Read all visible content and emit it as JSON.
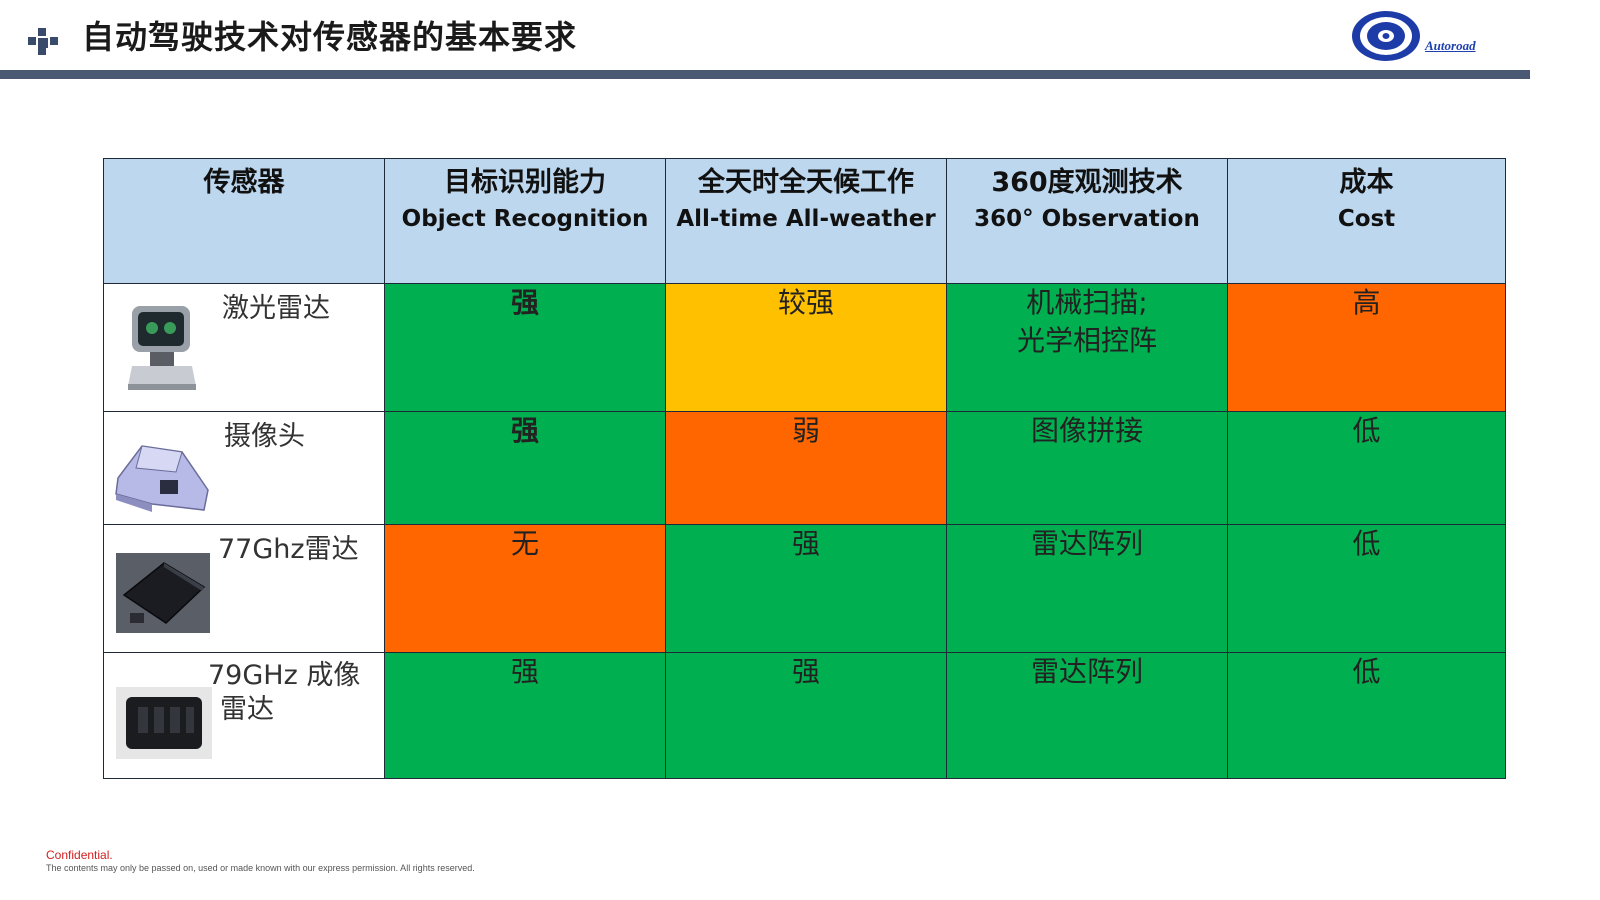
{
  "header": {
    "title": "自动驾驶技术对传感器的基本要求",
    "logo_text": "Autoroad"
  },
  "table": {
    "columns": [
      {
        "cn": "传感器",
        "en": ""
      },
      {
        "cn": "目标识别能力",
        "en": "Object Recognition"
      },
      {
        "cn": "全天时全天候工作",
        "en": "All-time All-weather"
      },
      {
        "cn": "360度观测技术",
        "en": "360° Observation"
      },
      {
        "cn": "成本",
        "en": "Cost"
      }
    ],
    "rows": [
      {
        "sensor": "激光雷达",
        "object": "强",
        "allweather": "较强",
        "obs_line1": "机械扫描;",
        "obs_line2": "光学相控阵",
        "cost": "高"
      },
      {
        "sensor": "摄像头",
        "object": "强",
        "allweather": "弱",
        "obs_line1": "图像拼接",
        "obs_line2": "",
        "cost": "低"
      },
      {
        "sensor": "77Ghz雷达",
        "object": "无",
        "allweather": "强",
        "obs_line1": "雷达阵列",
        "obs_line2": "",
        "cost": "低"
      },
      {
        "sensor_line1": "79GHz 成像",
        "sensor_line2": "雷达",
        "object": "强",
        "allweather": "强",
        "obs_line1": "雷达阵列",
        "obs_line2": "",
        "cost": "低"
      }
    ]
  },
  "colors": {
    "green": "#00b050",
    "orange": "#ff6600",
    "yellow": "#ffc000",
    "header_blue": "#bdd7ee"
  },
  "footer": {
    "confidential": "Confidential.",
    "disclaimer": "The contents may only be passed on, used or made known with our express permission. All rights reserved."
  }
}
